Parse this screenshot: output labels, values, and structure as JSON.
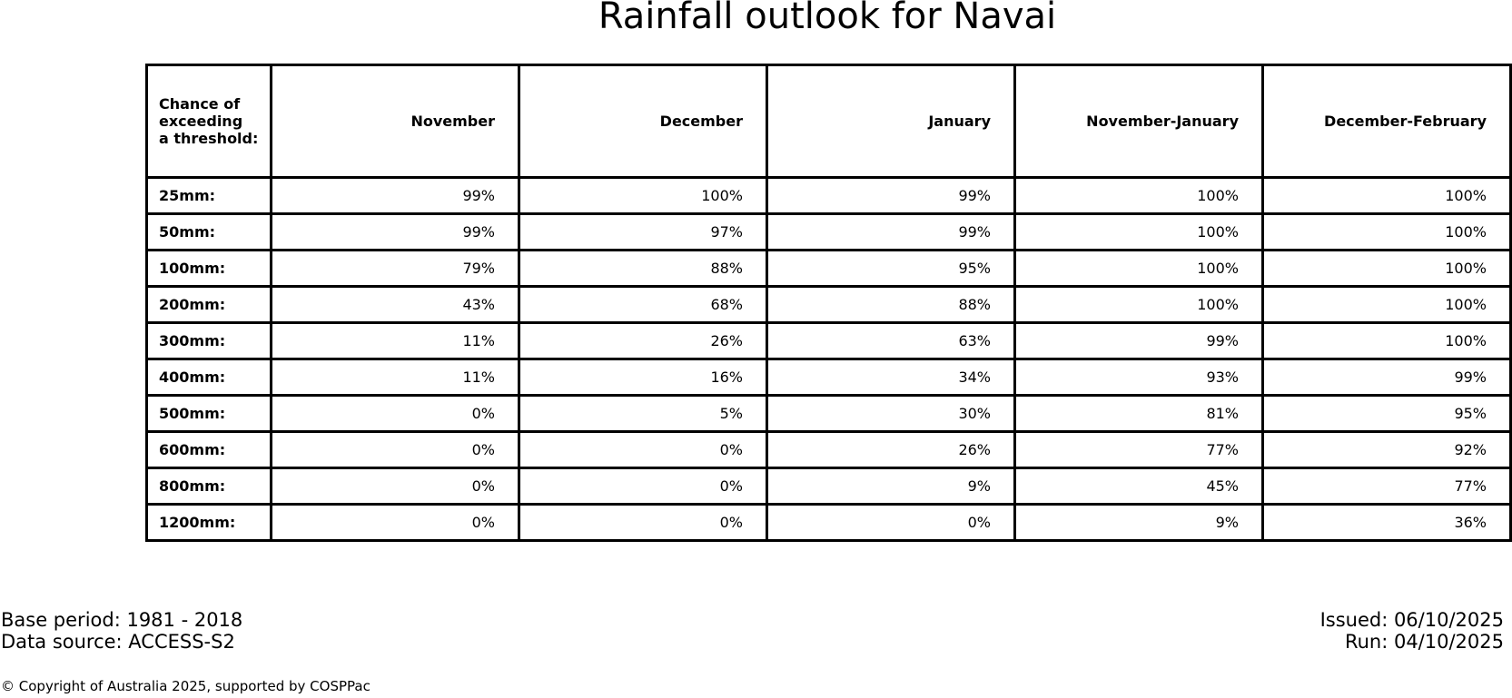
{
  "title": "Rainfall outlook for Navai",
  "table": {
    "corner_header": "Chance of\nexceeding\na threshold:",
    "columns": [
      "November",
      "December",
      "January",
      "November-January",
      "December-February"
    ],
    "rows": [
      {
        "label": "25mm:",
        "values": [
          "99%",
          "100%",
          "99%",
          "100%",
          "100%"
        ]
      },
      {
        "label": "50mm:",
        "values": [
          "99%",
          "97%",
          "99%",
          "100%",
          "100%"
        ]
      },
      {
        "label": "100mm:",
        "values": [
          "79%",
          "88%",
          "95%",
          "100%",
          "100%"
        ]
      },
      {
        "label": "200mm:",
        "values": [
          "43%",
          "68%",
          "88%",
          "100%",
          "100%"
        ]
      },
      {
        "label": "300mm:",
        "values": [
          "11%",
          "26%",
          "63%",
          "99%",
          "100%"
        ]
      },
      {
        "label": "400mm:",
        "values": [
          "11%",
          "16%",
          "34%",
          "93%",
          "99%"
        ]
      },
      {
        "label": "500mm:",
        "values": [
          "0%",
          "5%",
          "30%",
          "81%",
          "95%"
        ]
      },
      {
        "label": "600mm:",
        "values": [
          "0%",
          "0%",
          "26%",
          "77%",
          "92%"
        ]
      },
      {
        "label": "800mm:",
        "values": [
          "0%",
          "0%",
          "9%",
          "45%",
          "77%"
        ]
      },
      {
        "label": "1200mm:",
        "values": [
          "0%",
          "0%",
          "0%",
          "9%",
          "36%"
        ]
      }
    ]
  },
  "footer": {
    "base_period": "Base period: 1981 - 2018",
    "data_source": "Data source: ACCESS-S2",
    "issued": "Issued: 06/10/2025",
    "run": "Run: 04/10/2025",
    "copyright": "© Copyright of Australia 2025, supported by COSPPac"
  },
  "colors": {
    "text": "#000000",
    "background": "#ffffff",
    "table_border": "#000000"
  },
  "chart_data": {
    "type": "table",
    "title": "Rainfall outlook for Navai",
    "row_header": "Chance of exceeding a threshold:",
    "unit": "%",
    "thresholds_mm": [
      25,
      50,
      100,
      200,
      300,
      400,
      500,
      600,
      800,
      1200
    ],
    "categories": [
      "November",
      "December",
      "January",
      "November-January",
      "December-February"
    ],
    "series": [
      {
        "name": "November",
        "values": [
          99,
          99,
          79,
          43,
          11,
          11,
          0,
          0,
          0,
          0
        ]
      },
      {
        "name": "December",
        "values": [
          100,
          97,
          88,
          68,
          26,
          16,
          5,
          0,
          0,
          0
        ]
      },
      {
        "name": "January",
        "values": [
          99,
          99,
          95,
          88,
          63,
          34,
          30,
          26,
          9,
          0
        ]
      },
      {
        "name": "November-January",
        "values": [
          100,
          100,
          100,
          100,
          99,
          93,
          81,
          77,
          45,
          9
        ]
      },
      {
        "name": "December-February",
        "values": [
          100,
          100,
          100,
          100,
          100,
          99,
          95,
          92,
          77,
          36
        ]
      }
    ]
  }
}
